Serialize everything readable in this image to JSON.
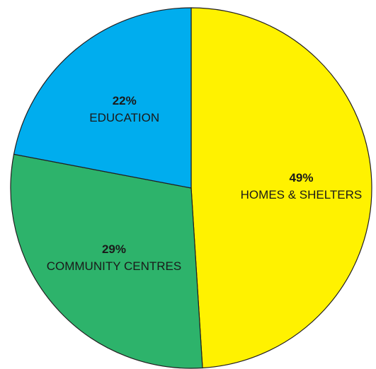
{
  "chart_data": {
    "type": "pie",
    "start_angle_deg": 0,
    "direction": "clockwise",
    "slices": [
      {
        "percent_label": "49%",
        "label": "HOMES & SHELTERS",
        "value": 49,
        "color": "#fff200"
      },
      {
        "percent_label": "29%",
        "label": "COMMUNITY CENTRES",
        "value": 29,
        "color": "#2db36b"
      },
      {
        "percent_label": "22%",
        "label": "EDUCATION",
        "value": 22,
        "color": "#00adee"
      }
    ]
  }
}
